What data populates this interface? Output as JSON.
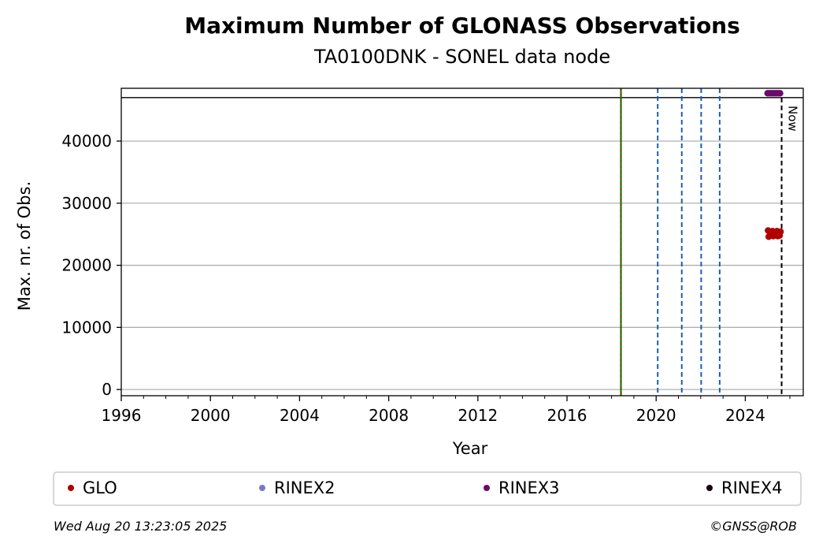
{
  "chart_data": {
    "type": "scatter",
    "title": "Maximum Number of GLONASS Observations",
    "subtitle": "TA0100DNK - SONEL data node",
    "xlabel": "Year",
    "ylabel": "Max. nr. of Obs.",
    "xlim": [
      1996,
      2026.6
    ],
    "ylim": [
      -1000,
      48500
    ],
    "x_ticks": [
      1996,
      2000,
      2004,
      2008,
      2012,
      2016,
      2020,
      2024
    ],
    "y_ticks": [
      0,
      10000,
      20000,
      30000,
      40000
    ],
    "grid": "y",
    "legend_position": "bottom",
    "legend": [
      {
        "name": "GLO",
        "color": "#b00000"
      },
      {
        "name": "RINEX2",
        "color": "#7b7bbf"
      },
      {
        "name": "RINEX3",
        "color": "#6a0a6a"
      },
      {
        "name": "RINEX4",
        "color": "#1a0010"
      }
    ],
    "series": [
      {
        "name": "GLO",
        "color": "#b00000",
        "x": [
          2025.02,
          2025.05,
          2025.1,
          2025.14,
          2025.18,
          2025.22,
          2025.26,
          2025.3,
          2025.34,
          2025.38,
          2025.42,
          2025.46,
          2025.5,
          2025.54,
          2025.58
        ],
        "y": [
          25600,
          24600,
          25400,
          25000,
          24800,
          25500,
          24700,
          25300,
          25100,
          24900,
          25500,
          24700,
          25200,
          24800,
          25400
        ]
      },
      {
        "name": "RINEX3",
        "color": "#6a0a6a",
        "x": [
          2025.0,
          2025.08,
          2025.16,
          2025.24,
          2025.32,
          2025.4,
          2025.48,
          2025.56
        ],
        "y": [
          47700,
          47700,
          47700,
          47700,
          47700,
          47700,
          47700,
          47700
        ]
      }
    ],
    "event_lines": [
      {
        "x": 2018.42,
        "style": "green-red-dashed",
        "color": "#008000"
      },
      {
        "x": 2020.07,
        "style": "dashed",
        "color": "#1f5fa8"
      },
      {
        "x": 2021.15,
        "style": "dashed",
        "color": "#1f5fa8"
      },
      {
        "x": 2022.02,
        "style": "dashed",
        "color": "#1f5fa8"
      },
      {
        "x": 2022.85,
        "style": "dashed",
        "color": "#1f5fa8"
      }
    ],
    "now_line": {
      "x": 2025.63,
      "label": "Now"
    },
    "top_band_y": 47000
  },
  "footer": {
    "timestamp": "Wed Aug 20 13:23:05 2025",
    "credit": "©GNSS@ROB"
  }
}
